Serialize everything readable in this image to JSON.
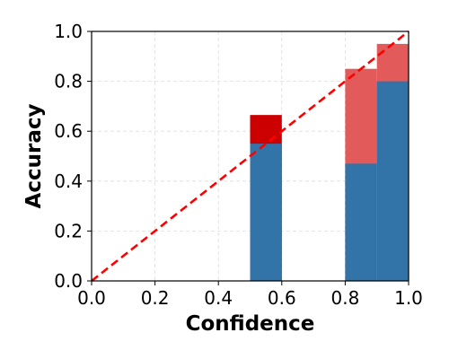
{
  "chart_data": {
    "type": "bar",
    "title": "",
    "xlabel": "Confidence",
    "ylabel": "Accuracy",
    "xlim": [
      0.0,
      1.0
    ],
    "ylim": [
      0.0,
      1.0
    ],
    "grid": true,
    "xticks": [
      "0.0",
      "0.2",
      "0.4",
      "0.6",
      "0.8",
      "1.0"
    ],
    "yticks": [
      "0.0",
      "0.2",
      "0.4",
      "0.6",
      "0.8",
      "1.0"
    ],
    "bins": [
      {
        "x0": 0.5,
        "x1": 0.6,
        "accuracy": 0.55,
        "confidence": 0.665,
        "gap_color": "#cc0000"
      },
      {
        "x0": 0.8,
        "x1": 0.9,
        "accuracy": 0.47,
        "confidence": 0.85,
        "gap_color": "#e35a5a"
      },
      {
        "x0": 0.9,
        "x1": 1.0,
        "accuracy": 0.8,
        "confidence": 0.95,
        "gap_color": "#e35a5a"
      }
    ],
    "diagonal": {
      "from": [
        0.0,
        0.0
      ],
      "to": [
        1.0,
        1.0
      ],
      "style": "dashed"
    },
    "colors": {
      "accuracy_bar": "#3274a8",
      "diagonal": "#ff0000"
    }
  }
}
